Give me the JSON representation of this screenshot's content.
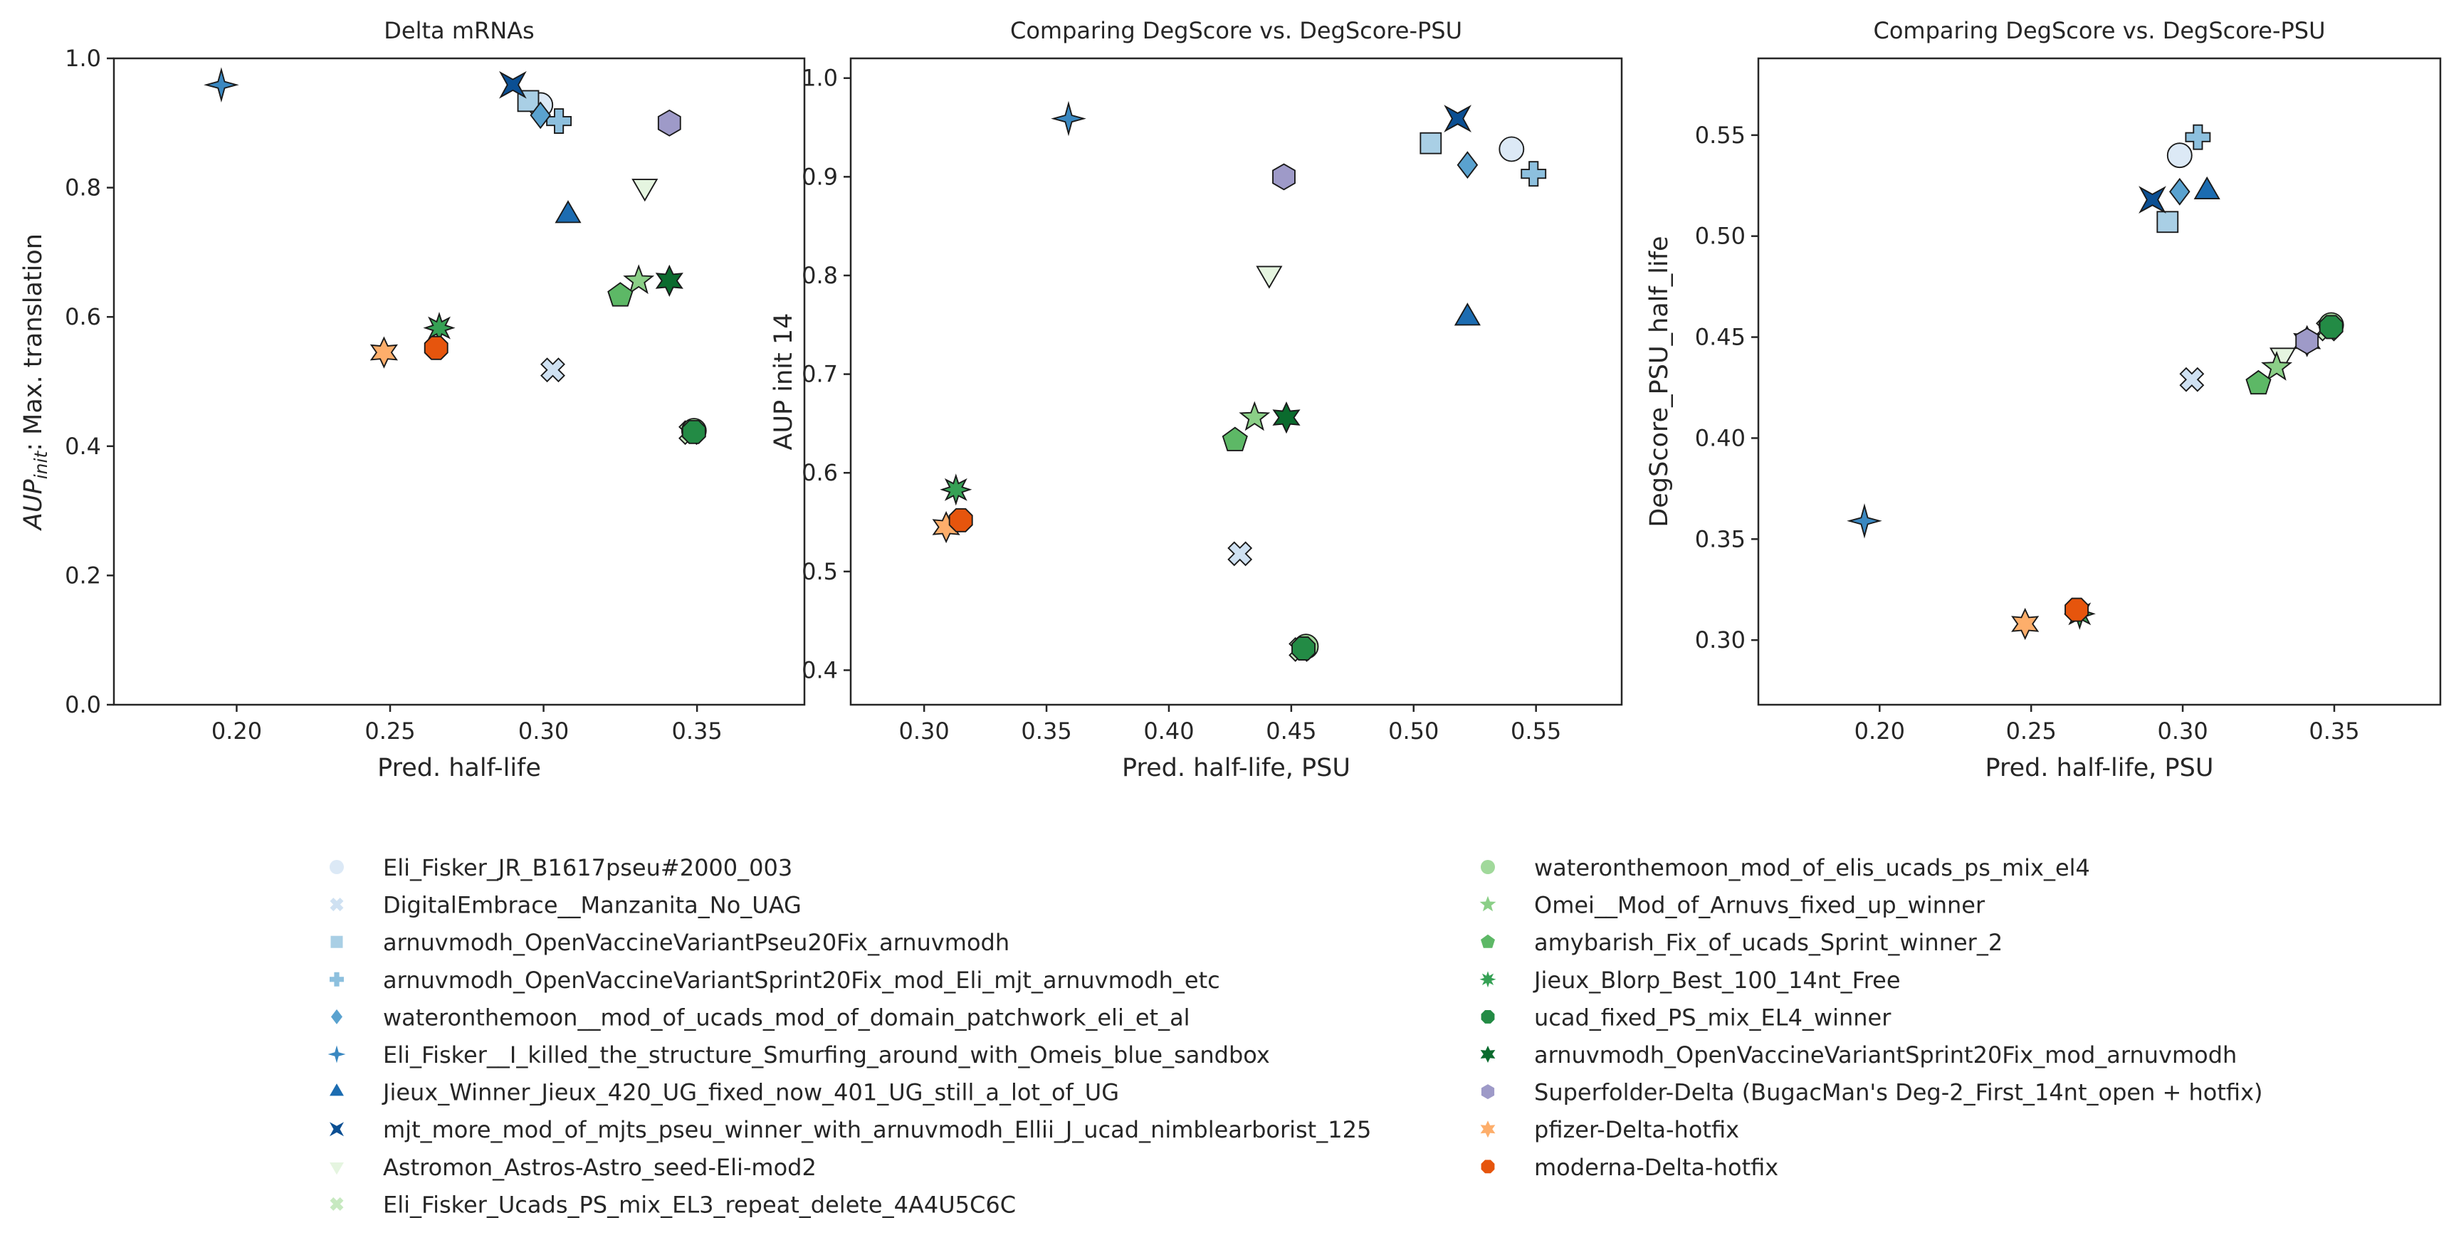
{
  "chart_data": [
    {
      "type": "scatter",
      "title": "Delta mRNAs",
      "xlabel": "Pred. half-life",
      "ylabel_prefix": "AUP",
      "ylabel_sub": "init",
      "ylabel_suffix": ": Max. translation",
      "xlim": [
        0.16,
        0.385
      ],
      "ylim": [
        0.0,
        1.0
      ],
      "xticks": [
        0.2,
        0.25,
        0.3,
        0.35
      ],
      "xtick_labels": [
        "0.20",
        "0.25",
        "0.30",
        "0.35"
      ],
      "yticks": [
        0.0,
        0.2,
        0.4,
        0.6,
        0.8,
        1.0
      ],
      "ytick_labels": [
        "0.0",
        "0.2",
        "0.4",
        "0.6",
        "0.8",
        "1.0"
      ],
      "grid": false,
      "points": [
        {
          "series": "Eli_Fisker_JR_B1617pseu#2000_003",
          "x": 0.299,
          "y": 0.928
        },
        {
          "series": "DigitalEmbrace__Manzanita_No_UAG",
          "x": 0.303,
          "y": 0.518
        },
        {
          "series": "arnuvmodh_OpenVaccineVariantPseu20Fix_arnuvmodh",
          "x": 0.295,
          "y": 0.934
        },
        {
          "series": "arnuvmodh_OpenVaccineVariantSprint20Fix_mod_Eli_mjt_arnuvmodh_etc",
          "x": 0.305,
          "y": 0.903
        },
        {
          "series": "wateronthemoon__mod_of_ucads_mod_of_domain_patchwork_eli_et_al",
          "x": 0.299,
          "y": 0.912
        },
        {
          "series": "Eli_Fisker__I_killed_the_structure_Smurfing_around_with_Omeis_blue_sandbox",
          "x": 0.195,
          "y": 0.959
        },
        {
          "series": "Jieux_Winner_Jieux_420_UG_fixed_now_401_UG_still_a_lot_of_UG",
          "x": 0.308,
          "y": 0.757
        },
        {
          "series": "mjt_more_mod_of_mjts_pseu_winner_with_arnuvmodh_Ellii_J_ucad_nimblearborist_125",
          "x": 0.29,
          "y": 0.959
        },
        {
          "series": "Astromon_Astros-Astro_seed-Eli-mod2",
          "x": 0.333,
          "y": 0.802
        },
        {
          "series": "Eli_Fisker_Ucads_PS_mix_EL3_repeat_delete_4A4U5C6C",
          "x": 0.348,
          "y": 0.421
        },
        {
          "series": "wateronthemoon_mod_of_elis_ucads_ps_mix_el4",
          "x": 0.349,
          "y": 0.424
        },
        {
          "series": "Omei__Mod_of_Arnuvs_fixed_up_winner",
          "x": 0.331,
          "y": 0.656
        },
        {
          "series": "amybarish_Fix_of_ucads_Sprint_winner_2",
          "x": 0.325,
          "y": 0.633
        },
        {
          "series": "Jieux_Blorp_Best_100_14nt_Free",
          "x": 0.266,
          "y": 0.583
        },
        {
          "series": "ucad_fixed_PS_mix_EL4_winner",
          "x": 0.349,
          "y": 0.422
        },
        {
          "series": "arnuvmodh_OpenVaccineVariantSprint20Fix_mod_arnuvmodh",
          "x": 0.341,
          "y": 0.656
        },
        {
          "series": "Superfolder-Delta (BugacMan's Deg-2_First_14nt_open + hotfix)",
          "x": 0.341,
          "y": 0.9
        },
        {
          "series": "pfizer-Delta-hotfix",
          "x": 0.248,
          "y": 0.545
        },
        {
          "series": "moderna-Delta-hotfix",
          "x": 0.265,
          "y": 0.552
        }
      ]
    },
    {
      "type": "scatter",
      "title": "Comparing DegScore vs. DegScore-PSU",
      "xlabel": "Pred. half-life, PSU",
      "ylabel": "AUP init 14",
      "xlim": [
        0.27,
        0.585
      ],
      "ylim": [
        0.365,
        1.02
      ],
      "xticks": [
        0.3,
        0.35,
        0.4,
        0.45,
        0.5,
        0.55
      ],
      "xtick_labels": [
        "0.30",
        "0.35",
        "0.40",
        "0.45",
        "0.50",
        "0.55"
      ],
      "yticks": [
        0.4,
        0.5,
        0.6,
        0.7,
        0.8,
        0.9,
        1.0
      ],
      "ytick_labels": [
        "0.4",
        "0.5",
        "0.6",
        "0.7",
        "0.8",
        "0.9",
        "1.0"
      ],
      "grid": false,
      "points": [
        {
          "series": "Eli_Fisker_JR_B1617pseu#2000_003",
          "x": 0.54,
          "y": 0.928
        },
        {
          "series": "DigitalEmbrace__Manzanita_No_UAG",
          "x": 0.429,
          "y": 0.518
        },
        {
          "series": "arnuvmodh_OpenVaccineVariantPseu20Fix_arnuvmodh",
          "x": 0.507,
          "y": 0.934
        },
        {
          "series": "arnuvmodh_OpenVaccineVariantSprint20Fix_mod_Eli_mjt_arnuvmodh_etc",
          "x": 0.549,
          "y": 0.903
        },
        {
          "series": "wateronthemoon__mod_of_ucads_mod_of_domain_patchwork_eli_et_al",
          "x": 0.522,
          "y": 0.912
        },
        {
          "series": "Eli_Fisker__I_killed_the_structure_Smurfing_around_with_Omeis_blue_sandbox",
          "x": 0.359,
          "y": 0.959
        },
        {
          "series": "Jieux_Winner_Jieux_420_UG_fixed_now_401_UG_still_a_lot_of_UG",
          "x": 0.522,
          "y": 0.757
        },
        {
          "series": "mjt_more_mod_of_mjts_pseu_winner_with_arnuvmodh_Ellii_J_ucad_nimblearborist_125",
          "x": 0.518,
          "y": 0.959
        },
        {
          "series": "Astromon_Astros-Astro_seed-Eli-mod2",
          "x": 0.441,
          "y": 0.802
        },
        {
          "series": "Eli_Fisker_Ucads_PS_mix_EL3_repeat_delete_4A4U5C6C",
          "x": 0.454,
          "y": 0.421
        },
        {
          "series": "wateronthemoon_mod_of_elis_ucads_ps_mix_el4",
          "x": 0.456,
          "y": 0.424
        },
        {
          "series": "Omei__Mod_of_Arnuvs_fixed_up_winner",
          "x": 0.435,
          "y": 0.656
        },
        {
          "series": "amybarish_Fix_of_ucads_Sprint_winner_2",
          "x": 0.427,
          "y": 0.633
        },
        {
          "series": "Jieux_Blorp_Best_100_14nt_Free",
          "x": 0.313,
          "y": 0.583
        },
        {
          "series": "ucad_fixed_PS_mix_EL4_winner",
          "x": 0.455,
          "y": 0.422
        },
        {
          "series": "arnuvmodh_OpenVaccineVariantSprint20Fix_mod_arnuvmodh",
          "x": 0.448,
          "y": 0.656
        },
        {
          "series": "Superfolder-Delta (BugacMan's Deg-2_First_14nt_open + hotfix)",
          "x": 0.447,
          "y": 0.9
        },
        {
          "series": "pfizer-Delta-hotfix",
          "x": 0.309,
          "y": 0.545
        },
        {
          "series": "moderna-Delta-hotfix",
          "x": 0.315,
          "y": 0.552
        }
      ]
    },
    {
      "type": "scatter",
      "title": "Comparing DegScore vs. DegScore-PSU",
      "xlabel": "Pred. half-life, PSU",
      "ylabel": "DegScore_PSU_half_life",
      "xlim": [
        0.16,
        0.385
      ],
      "ylim": [
        0.268,
        0.588
      ],
      "xticks": [
        0.2,
        0.25,
        0.3,
        0.35
      ],
      "xtick_labels": [
        "0.20",
        "0.25",
        "0.30",
        "0.35"
      ],
      "yticks": [
        0.3,
        0.35,
        0.4,
        0.45,
        0.5,
        0.55
      ],
      "ytick_labels": [
        "0.30",
        "0.35",
        "0.40",
        "0.45",
        "0.50",
        "0.55"
      ],
      "grid": false,
      "points": [
        {
          "series": "Eli_Fisker_JR_B1617pseu#2000_003",
          "x": 0.299,
          "y": 0.54
        },
        {
          "series": "DigitalEmbrace__Manzanita_No_UAG",
          "x": 0.303,
          "y": 0.429
        },
        {
          "series": "arnuvmodh_OpenVaccineVariantPseu20Fix_arnuvmodh",
          "x": 0.295,
          "y": 0.507
        },
        {
          "series": "arnuvmodh_OpenVaccineVariantSprint20Fix_mod_Eli_mjt_arnuvmodh_etc",
          "x": 0.305,
          "y": 0.549
        },
        {
          "series": "wateronthemoon__mod_of_ucads_mod_of_domain_patchwork_eli_et_al",
          "x": 0.299,
          "y": 0.522
        },
        {
          "series": "Eli_Fisker__I_killed_the_structure_Smurfing_around_with_Omeis_blue_sandbox",
          "x": 0.195,
          "y": 0.359
        },
        {
          "series": "Jieux_Winner_Jieux_420_UG_fixed_now_401_UG_still_a_lot_of_UG",
          "x": 0.308,
          "y": 0.522
        },
        {
          "series": "mjt_more_mod_of_mjts_pseu_winner_with_arnuvmodh_Ellii_J_ucad_nimblearborist_125",
          "x": 0.29,
          "y": 0.518
        },
        {
          "series": "Astromon_Astros-Astro_seed-Eli-mod2",
          "x": 0.333,
          "y": 0.441
        },
        {
          "series": "Eli_Fisker_Ucads_PS_mix_EL3_repeat_delete_4A4U5C6C",
          "x": 0.348,
          "y": 0.454
        },
        {
          "series": "wateronthemoon_mod_of_elis_ucads_ps_mix_el4",
          "x": 0.349,
          "y": 0.456
        },
        {
          "series": "Omei__Mod_of_Arnuvs_fixed_up_winner",
          "x": 0.331,
          "y": 0.435
        },
        {
          "series": "amybarish_Fix_of_ucads_Sprint_winner_2",
          "x": 0.325,
          "y": 0.427
        },
        {
          "series": "Jieux_Blorp_Best_100_14nt_Free",
          "x": 0.266,
          "y": 0.313
        },
        {
          "series": "ucad_fixed_PS_mix_EL4_winner",
          "x": 0.349,
          "y": 0.455
        },
        {
          "series": "arnuvmodh_OpenVaccineVariantSprint20Fix_mod_arnuvmodh",
          "x": 0.341,
          "y": 0.448
        },
        {
          "series": "Superfolder-Delta (BugacMan's Deg-2_First_14nt_open + hotfix)",
          "x": 0.341,
          "y": 0.448
        },
        {
          "series": "pfizer-Delta-hotfix",
          "x": 0.248,
          "y": 0.308
        },
        {
          "series": "moderna-Delta-hotfix",
          "x": 0.265,
          "y": 0.315
        }
      ]
    }
  ],
  "legend": {
    "placement": "bottom",
    "entries": [
      {
        "label": "Eli_Fisker_JR_B1617pseu#2000_003",
        "marker": "circle",
        "color": "#dce9f6"
      },
      {
        "label": "DigitalEmbrace__Manzanita_No_UAG",
        "marker": "x",
        "color": "#cfe1f2"
      },
      {
        "label": "arnuvmodh_OpenVaccineVariantPseu20Fix_arnuvmodh",
        "marker": "square",
        "color": "#a9cfe5"
      },
      {
        "label": "arnuvmodh_OpenVaccineVariantSprint20Fix_mod_Eli_mjt_arnuvmodh_etc",
        "marker": "plus",
        "color": "#8dc0de"
      },
      {
        "label": "wateronthemoon__mod_of_ucads_mod_of_domain_patchwork_eli_et_al",
        "marker": "diamond",
        "color": "#5aa2cf"
      },
      {
        "label": "Eli_Fisker__I_killed_the_structure_Smurfing_around_with_Omeis_blue_sandbox",
        "marker": "thin-star",
        "color": "#3a88c1"
      },
      {
        "label": "Jieux_Winner_Jieux_420_UG_fixed_now_401_UG_still_a_lot_of_UG",
        "marker": "triangle-up",
        "color": "#1c6cb1"
      },
      {
        "label": "mjt_more_mod_of_mjts_pseu_winner_with_arnuvmodh_Ellii_J_ucad_nimblearborist_125",
        "marker": "bowtie",
        "color": "#0b4f93"
      },
      {
        "label": "Astromon_Astros-Astro_seed-Eli-mod2",
        "marker": "triangle-down",
        "color": "#e5f5e0"
      },
      {
        "label": "Eli_Fisker_Ucads_PS_mix_EL3_repeat_delete_4A4U5C6C",
        "marker": "x",
        "color": "#c7e9c0"
      },
      {
        "label": "wateronthemoon_mod_of_elis_ucads_ps_mix_el4",
        "marker": "circle",
        "color": "#a1d99b"
      },
      {
        "label": "Omei__Mod_of_Arnuvs_fixed_up_winner",
        "marker": "star",
        "color": "#8bcf87"
      },
      {
        "label": "amybarish_Fix_of_ucads_Sprint_winner_2",
        "marker": "pentagon",
        "color": "#5db866"
      },
      {
        "label": "Jieux_Blorp_Best_100_14nt_Free",
        "marker": "asterisk",
        "color": "#36a155"
      },
      {
        "label": "ucad_fixed_PS_mix_EL4_winner",
        "marker": "octagon",
        "color": "#238b45"
      },
      {
        "label": "arnuvmodh_OpenVaccineVariantSprint20Fix_mod_arnuvmodh",
        "marker": "hexstar",
        "color": "#0b6b2e"
      },
      {
        "label": "Superfolder-Delta (BugacMan's Deg-2_First_14nt_open + hotfix)",
        "marker": "hexagon",
        "color": "#9e9ac8"
      },
      {
        "label": "pfizer-Delta-hotfix",
        "marker": "hexstar",
        "color": "#fdae6b"
      },
      {
        "label": "moderna-Delta-hotfix",
        "marker": "octagon",
        "color": "#e6550d"
      }
    ]
  }
}
